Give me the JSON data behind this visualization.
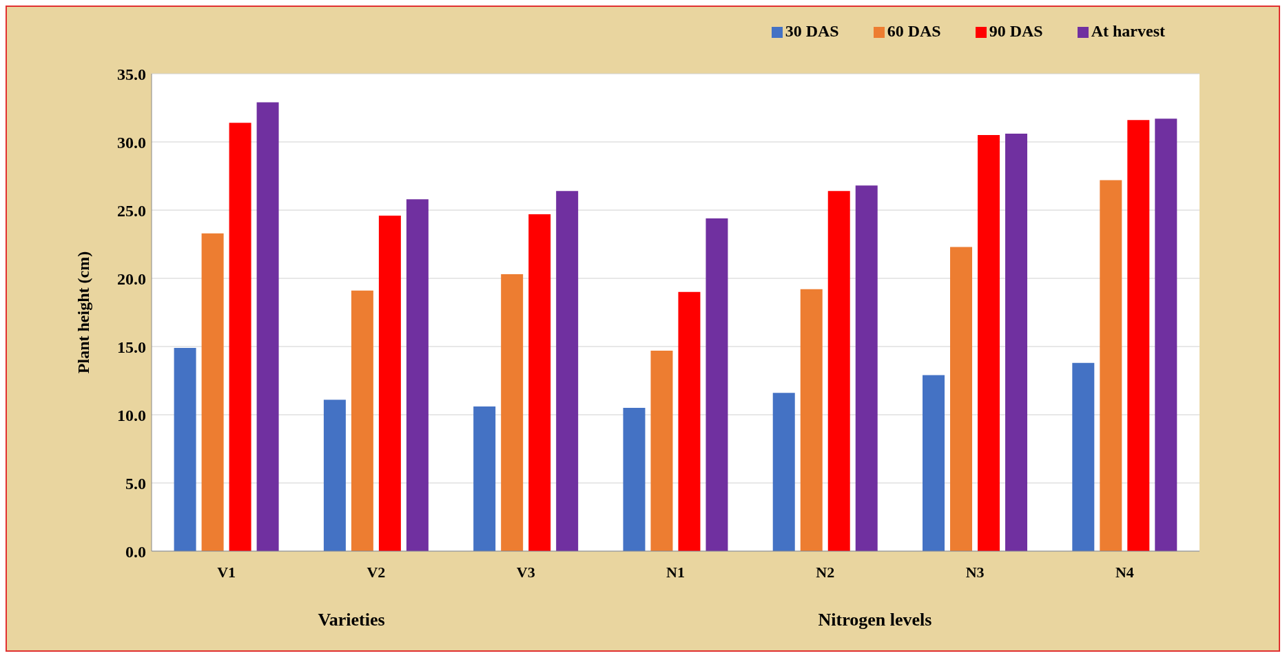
{
  "chart_data": {
    "type": "bar",
    "ylabel": "Plant height (cm)",
    "categories": [
      "V1",
      "V2",
      "V3",
      "N1",
      "N2",
      "N3",
      "N4"
    ],
    "series": [
      {
        "name": "30 DAS",
        "color": "#4472c4",
        "values": [
          14.9,
          11.1,
          10.6,
          10.5,
          11.6,
          12.9,
          13.8
        ]
      },
      {
        "name": "60 DAS",
        "color": "#ed7d31",
        "values": [
          23.3,
          19.1,
          20.3,
          14.7,
          19.2,
          22.3,
          27.2
        ]
      },
      {
        "name": "90 DAS",
        "color": "#ff0000",
        "values": [
          31.4,
          24.6,
          24.7,
          19.0,
          26.4,
          30.5,
          31.6
        ]
      },
      {
        "name": "At harvest",
        "color": "#7030a0",
        "values": [
          32.9,
          25.8,
          26.4,
          24.4,
          26.8,
          30.6,
          31.7
        ]
      }
    ],
    "ylim": [
      0,
      35
    ],
    "yticks": [
      {
        "value": 0,
        "label": "0.0"
      },
      {
        "value": 5,
        "label": "5.0"
      },
      {
        "value": 10,
        "label": "10.0"
      },
      {
        "value": 15,
        "label": "15.0"
      },
      {
        "value": 20,
        "label": "20.0"
      },
      {
        "value": 25,
        "label": "25.0"
      },
      {
        "value": 30,
        "label": "30.0"
      },
      {
        "value": 35,
        "label": "35.0"
      }
    ],
    "grid": "y",
    "legend": "top right",
    "annotations": [
      "Varieties",
      "Nitrogen levels"
    ]
  }
}
